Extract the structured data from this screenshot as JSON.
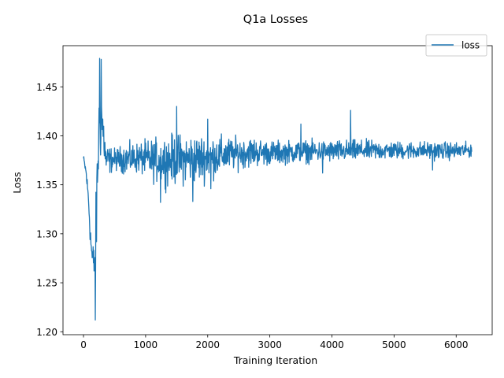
{
  "chart_data": {
    "type": "line",
    "title": "Q1a Losses",
    "xlabel": "Training Iteration",
    "ylabel": "Loss",
    "xlim": [
      -330,
      6580
    ],
    "ylim": [
      1.197,
      1.492
    ],
    "x_ticks": [
      0,
      1000,
      2000,
      3000,
      4000,
      5000,
      6000
    ],
    "x_tick_labels": [
      "0",
      "1000",
      "2000",
      "3000",
      "4000",
      "5000",
      "6000"
    ],
    "y_ticks": [
      1.2,
      1.25,
      1.3,
      1.35,
      1.4,
      1.45
    ],
    "y_tick_labels": [
      "1.20",
      "1.25",
      "1.30",
      "1.35",
      "1.40",
      "1.45"
    ],
    "grid": false,
    "legend": {
      "position": "top-right",
      "entries": [
        "loss"
      ]
    },
    "series": [
      {
        "name": "loss",
        "color": "#1f77b4",
        "x_start": 0,
        "x_end": 6250,
        "envelope": [
          {
            "x": 0,
            "low": 1.37,
            "high": 1.383
          },
          {
            "x": 40,
            "low": 1.355,
            "high": 1.372
          },
          {
            "x": 80,
            "low": 1.32,
            "high": 1.352
          },
          {
            "x": 110,
            "low": 1.28,
            "high": 1.32
          },
          {
            "x": 140,
            "low": 1.25,
            "high": 1.3
          },
          {
            "x": 170,
            "low": 1.24,
            "high": 1.3
          },
          {
            "x": 190,
            "low": 1.212,
            "high": 1.33
          },
          {
            "x": 215,
            "low": 1.27,
            "high": 1.4
          },
          {
            "x": 240,
            "low": 1.32,
            "high": 1.465
          },
          {
            "x": 260,
            "low": 1.35,
            "high": 1.479
          },
          {
            "x": 290,
            "low": 1.36,
            "high": 1.478
          },
          {
            "x": 320,
            "low": 1.365,
            "high": 1.44
          },
          {
            "x": 360,
            "low": 1.35,
            "high": 1.4
          },
          {
            "x": 420,
            "low": 1.355,
            "high": 1.395
          },
          {
            "x": 500,
            "low": 1.36,
            "high": 1.392
          },
          {
            "x": 700,
            "low": 1.355,
            "high": 1.398
          },
          {
            "x": 900,
            "low": 1.355,
            "high": 1.4
          },
          {
            "x": 1100,
            "low": 1.345,
            "high": 1.405
          },
          {
            "x": 1300,
            "low": 1.34,
            "high": 1.41
          },
          {
            "x": 1500,
            "low": 1.34,
            "high": 1.412
          },
          {
            "x": 1800,
            "low": 1.34,
            "high": 1.412
          },
          {
            "x": 2100,
            "low": 1.348,
            "high": 1.41
          },
          {
            "x": 2400,
            "low": 1.358,
            "high": 1.405
          },
          {
            "x": 2700,
            "low": 1.362,
            "high": 1.405
          },
          {
            "x": 3000,
            "low": 1.365,
            "high": 1.4
          },
          {
            "x": 3500,
            "low": 1.368,
            "high": 1.4
          },
          {
            "x": 4000,
            "low": 1.368,
            "high": 1.4
          },
          {
            "x": 4500,
            "low": 1.37,
            "high": 1.4
          },
          {
            "x": 5000,
            "low": 1.372,
            "high": 1.398
          },
          {
            "x": 5500,
            "low": 1.372,
            "high": 1.398
          },
          {
            "x": 6000,
            "low": 1.372,
            "high": 1.397
          },
          {
            "x": 6250,
            "low": 1.375,
            "high": 1.396
          }
        ],
        "spikes": [
          {
            "x": 190,
            "y": 1.212
          },
          {
            "x": 262,
            "y": 1.479
          },
          {
            "x": 285,
            "y": 1.478
          },
          {
            "x": 1240,
            "y": 1.332
          },
          {
            "x": 1500,
            "y": 1.43
          },
          {
            "x": 1760,
            "y": 1.333
          },
          {
            "x": 2000,
            "y": 1.417
          },
          {
            "x": 2050,
            "y": 1.346
          },
          {
            "x": 3500,
            "y": 1.412
          },
          {
            "x": 3850,
            "y": 1.362
          },
          {
            "x": 4300,
            "y": 1.426
          },
          {
            "x": 5620,
            "y": 1.365
          }
        ]
      }
    ]
  }
}
